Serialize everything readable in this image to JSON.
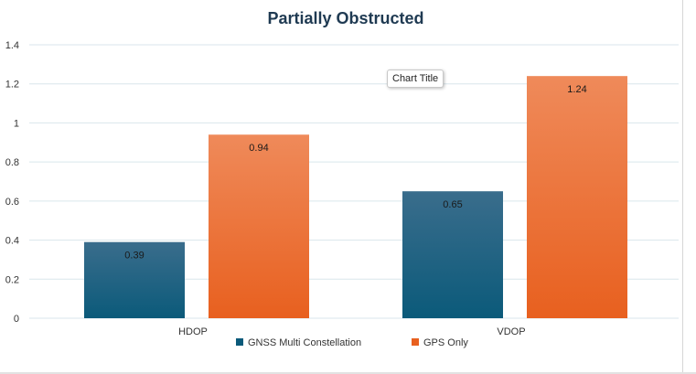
{
  "chart_data": {
    "type": "bar",
    "title": "Partially Obstructed",
    "categories": [
      "HDOP",
      "VDOP"
    ],
    "series": [
      {
        "name": "GNSS Multi Constellation",
        "values": [
          0.39,
          0.65
        ],
        "color_top": "#3a6d8c",
        "color_bottom": "#0b5a7a"
      },
      {
        "name": "GPS Only",
        "values": [
          0.94,
          1.24
        ],
        "color_top": "#ef8a5a",
        "color_bottom": "#e8601f"
      }
    ],
    "data_labels": [
      [
        "0.39",
        "0.65"
      ],
      [
        "0.94",
        "1.24"
      ]
    ],
    "y_ticks": [
      "0",
      "0.2",
      "0.4",
      "0.6",
      "0.8",
      "1",
      "1.2",
      "1.4"
    ],
    "ylim": [
      0,
      1.4
    ],
    "grid": true,
    "legend_position": "bottom",
    "xlabel": "",
    "ylabel": ""
  },
  "tooltip": {
    "text": "Chart Title"
  },
  "colors": {
    "title": "#1f3a52",
    "grid": "#d9e6ec",
    "axis_text": "#333333"
  }
}
